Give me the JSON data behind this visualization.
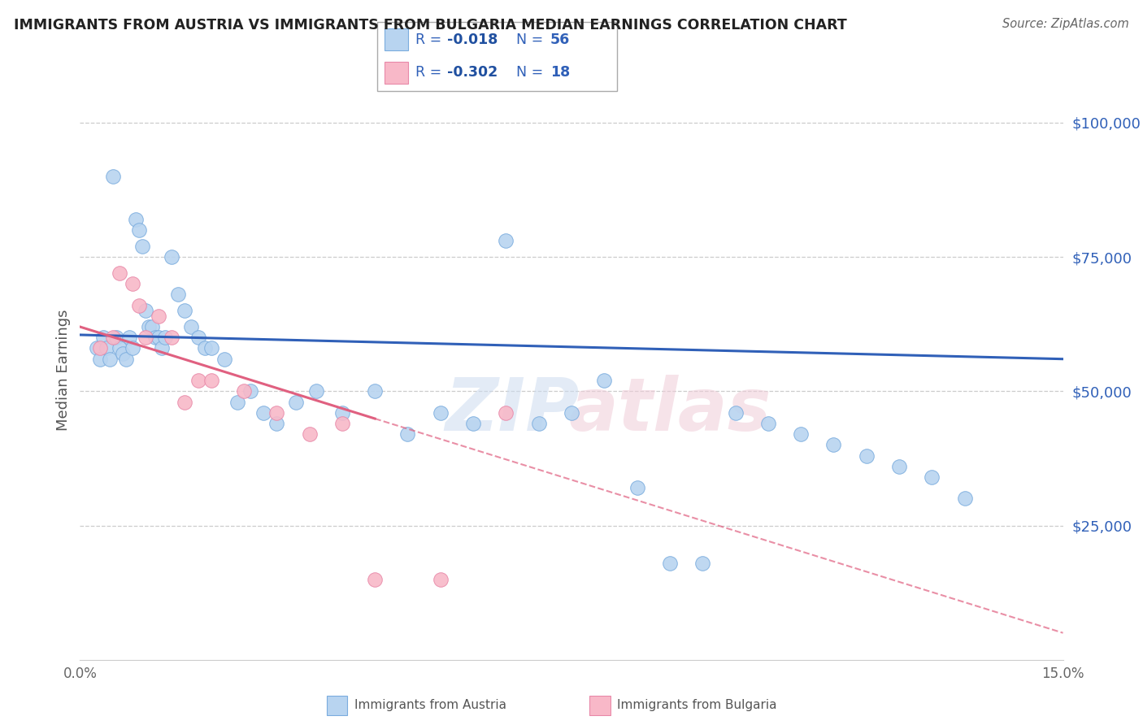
{
  "title": "IMMIGRANTS FROM AUSTRIA VS IMMIGRANTS FROM BULGARIA MEDIAN EARNINGS CORRELATION CHART",
  "source": "Source: ZipAtlas.com",
  "ylabel": "Median Earnings",
  "y_tick_labels": [
    "$25,000",
    "$50,000",
    "$75,000",
    "$100,000"
  ],
  "y_tick_values": [
    25000,
    50000,
    75000,
    100000
  ],
  "xmin": 0.0,
  "xmax": 15.0,
  "ymin": 0,
  "ymax": 108000,
  "austria_color": "#b8d4f0",
  "austria_edge_color": "#7aacde",
  "bulgaria_color": "#f8b8c8",
  "bulgaria_edge_color": "#e888a8",
  "austria_line_color": "#3060b8",
  "bulgaria_line_color": "#e06080",
  "text_blue": "#3060b8",
  "r_value_color": "#2050a0",
  "n_value_color": "#3060b8",
  "legend_r_color": "#2050a0",
  "legend_n_color": "#3060b8",
  "austria_label_r": "-0.018",
  "austria_label_n": "56",
  "bulgaria_label_r": "-0.302",
  "bulgaria_label_n": "18",
  "austria_trend_x": [
    0.0,
    15.0
  ],
  "austria_trend_y": [
    60500,
    56000
  ],
  "bulgaria_trend_x": [
    0.0,
    15.0
  ],
  "bulgaria_trend_y": [
    62000,
    5000
  ],
  "bulgaria_solid_end_x": 4.5,
  "austria_points_x": [
    0.25,
    0.3,
    0.35,
    0.4,
    0.45,
    0.5,
    0.55,
    0.6,
    0.65,
    0.7,
    0.75,
    0.8,
    0.85,
    0.9,
    0.95,
    1.0,
    1.05,
    1.1,
    1.15,
    1.2,
    1.25,
    1.3,
    1.4,
    1.5,
    1.6,
    1.7,
    1.8,
    1.9,
    2.0,
    2.2,
    2.4,
    2.6,
    2.8,
    3.0,
    3.3,
    3.6,
    4.0,
    4.5,
    5.0,
    5.5,
    6.0,
    6.5,
    7.0,
    7.5,
    8.0,
    8.5,
    9.0,
    9.5,
    10.0,
    10.5,
    11.0,
    11.5,
    12.0,
    12.5,
    13.0,
    13.5
  ],
  "austria_points_y": [
    58000,
    56000,
    60000,
    58000,
    56000,
    90000,
    60000,
    58000,
    57000,
    56000,
    60000,
    58000,
    82000,
    80000,
    77000,
    65000,
    62000,
    62000,
    60000,
    60000,
    58000,
    60000,
    75000,
    68000,
    65000,
    62000,
    60000,
    58000,
    58000,
    56000,
    48000,
    50000,
    46000,
    44000,
    48000,
    50000,
    46000,
    50000,
    42000,
    46000,
    44000,
    78000,
    44000,
    46000,
    52000,
    32000,
    18000,
    18000,
    46000,
    44000,
    42000,
    40000,
    38000,
    36000,
    34000,
    30000
  ],
  "bulgaria_points_x": [
    0.3,
    0.5,
    0.6,
    0.8,
    0.9,
    1.0,
    1.2,
    1.4,
    1.6,
    1.8,
    2.0,
    2.5,
    3.0,
    3.5,
    4.0,
    4.5,
    5.5,
    6.5
  ],
  "bulgaria_points_y": [
    58000,
    60000,
    72000,
    70000,
    66000,
    60000,
    64000,
    60000,
    48000,
    52000,
    52000,
    50000,
    46000,
    42000,
    44000,
    15000,
    15000,
    46000
  ]
}
